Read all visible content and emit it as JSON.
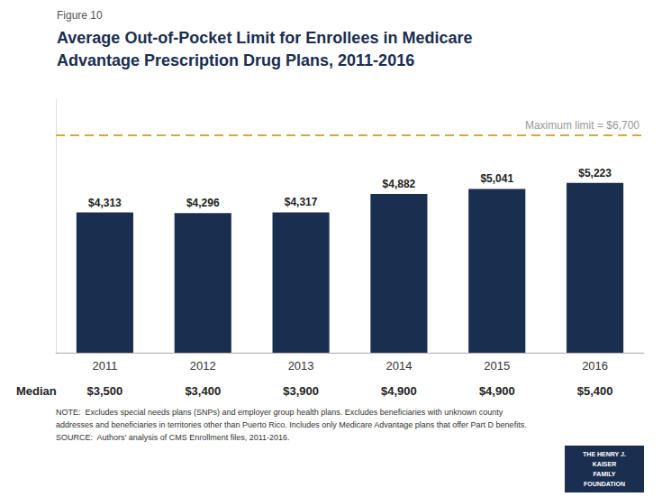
{
  "chart_data": {
    "type": "bar",
    "figure_label": "Figure 10",
    "title": "Average Out-of-Pocket Limit for Enrollees in Medicare\nAdvantage Prescription Drug Plans, 2011-2016",
    "categories": [
      "2011",
      "2012",
      "2013",
      "2014",
      "2015",
      "2016"
    ],
    "values": [
      4313,
      4296,
      4317,
      4882,
      5041,
      5223
    ],
    "value_labels": [
      "$4,313",
      "$4,296",
      "$4,317",
      "$4,882",
      "$5,041",
      "$5,223"
    ],
    "data_labels": true,
    "color": "#1a2e4f",
    "ylim": [
      0,
      7800
    ],
    "tick_labels": "x",
    "grid": false,
    "reference_line": {
      "value": 6700,
      "label": "Maximum limit = $6,700",
      "color": "#d4a843",
      "line_style": "dashed"
    },
    "median": {
      "label": "Median",
      "labels": [
        "$3,500",
        "$3,400",
        "$3,900",
        "$4,900",
        "$4,900",
        "$5,400"
      ]
    },
    "notes": [
      "NOTE:  Excludes special needs plans (SNPs) and employer group health plans. Excludes beneficiaries with unknown county",
      "addresses and beneficiaries in territories other than Puerto Rico. Includes only Medicare Advantage plans that offer Part D benefits.",
      "SOURCE:  Authors’ analysis of CMS Enrollment files, 2011-2016."
    ],
    "logo": {
      "text": "THE HENRY J.\nKAISER\nFAMILY\nFOUNDATION",
      "color": "#1a2e4f"
    }
  }
}
